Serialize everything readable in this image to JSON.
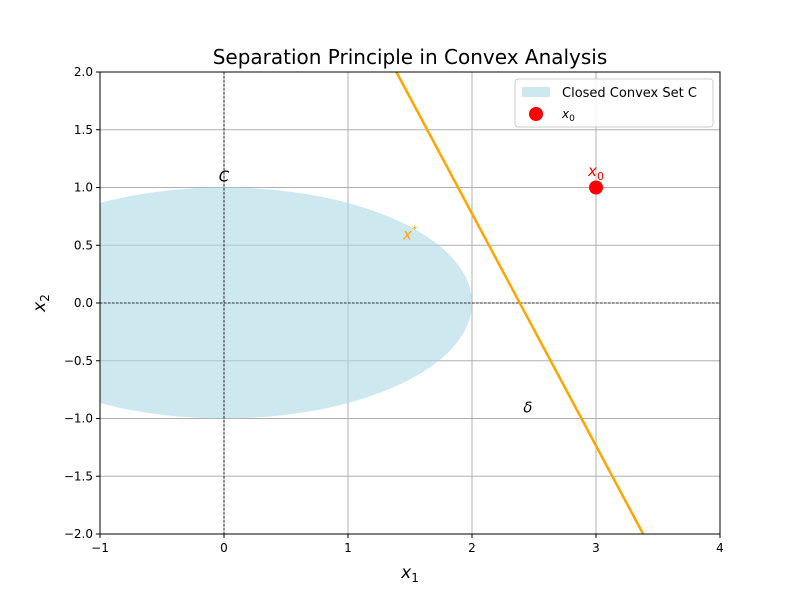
{
  "chart_data": {
    "type": "scatter",
    "title": "Separation Principle in Convex Analysis",
    "xlabel": "x",
    "xlabel_sub": "1",
    "ylabel": "x",
    "ylabel_sub": "2",
    "xlim": [
      -1,
      4
    ],
    "ylim": [
      -2,
      2
    ],
    "xticks": [
      -1,
      0,
      1,
      2,
      3,
      4
    ],
    "xtick_labels": [
      "−1",
      "0",
      "1",
      "2",
      "3",
      "4"
    ],
    "yticks": [
      -2,
      -1.5,
      -1,
      -0.5,
      0,
      0.5,
      1,
      1.5,
      2
    ],
    "ytick_labels": [
      "−2.0",
      "−1.5",
      "−1.0",
      "−0.5",
      "0.0",
      "0.5",
      "1.0",
      "1.5",
      "2.0"
    ],
    "grid": true,
    "legend_position": "top-right",
    "convex_set": {
      "shape": "ellipse",
      "center": [
        0,
        0
      ],
      "semi_axis_x": 2,
      "semi_axis_y": 1,
      "color": "#add8e6",
      "legend": "Closed Convex Set C"
    },
    "point": {
      "x": 3,
      "y": 1,
      "color": "#ff0000",
      "legend": "x",
      "legend_sub": "0"
    },
    "separating_line": {
      "points": [
        [
          1.39,
          2
        ],
        [
          3.38,
          -2
        ]
      ],
      "color": "#ffa500"
    },
    "reference_lines": {
      "x": 0,
      "y": 0,
      "style": "dashed",
      "color": "#000000"
    },
    "annotations": [
      {
        "id": "C",
        "text": "C",
        "x": 0,
        "y": 1.05,
        "color": "#000000"
      },
      {
        "id": "x0",
        "text": "x",
        "sub": "0",
        "x": 3,
        "y": 1.1,
        "color": "#ff0000"
      },
      {
        "id": "xstar",
        "text": "x",
        "sup": "*",
        "x": 1.5,
        "y": 0.55,
        "color": "#ffa500"
      },
      {
        "id": "delta",
        "text": "δ",
        "x": 2.45,
        "y": -0.95,
        "color": "#000000"
      }
    ]
  }
}
